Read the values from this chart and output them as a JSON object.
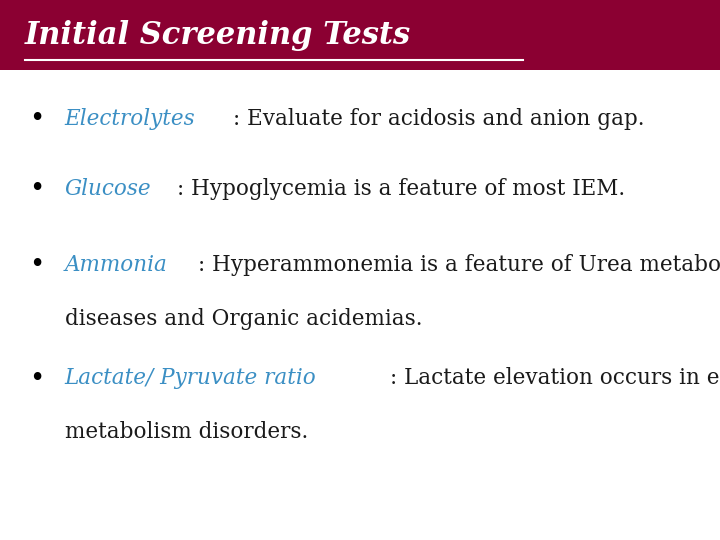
{
  "title": "Initial Screening Tests",
  "title_color": "#FFFFFF",
  "title_bg_color": "#8B0032",
  "title_fontsize": 22,
  "background_color": "#FFFFFF",
  "bullet_color": "#000000",
  "keyword_color": "#3B8FC4",
  "text_color": "#1a1a1a",
  "font_size": 15.5,
  "bullets": [
    {
      "keyword": "Electrolytes",
      "rest": ": Evaluate for acidosis and anion gap.",
      "line2": null
    },
    {
      "keyword": "Glucose",
      "rest": ": Hypoglycemia is a feature of most IEM.",
      "line2": null
    },
    {
      "keyword": "Ammonia",
      "rest": ": Hyperammonemia is a feature of Urea metabolic",
      "line2": "diseases and Organic acidemias."
    },
    {
      "keyword": "Lactate/ Pyruvate ratio",
      "rest": ": Lactate elevation occurs in energy",
      "line2": "metabolism disorders."
    }
  ]
}
